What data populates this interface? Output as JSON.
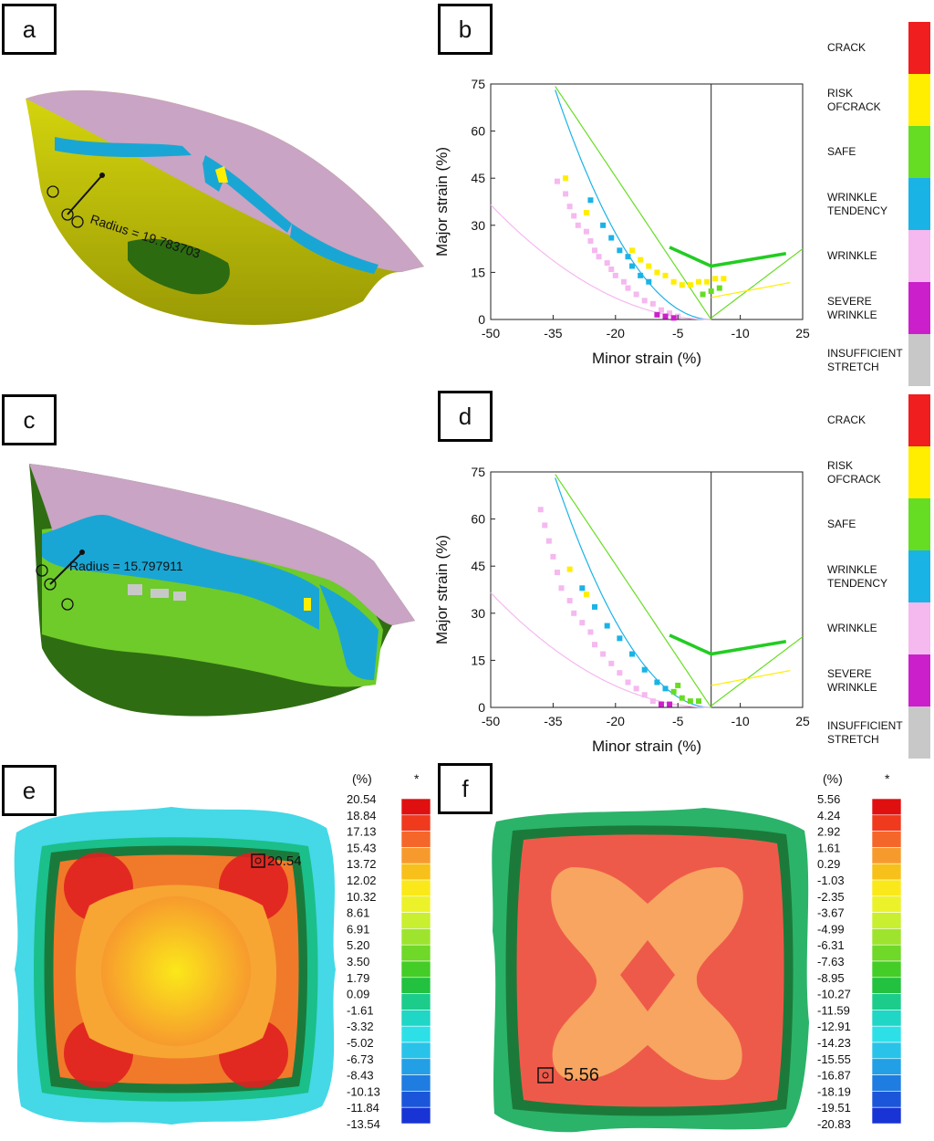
{
  "panels": {
    "a": "a",
    "b": "b",
    "c": "c",
    "d": "d",
    "e": "e",
    "f": "f"
  },
  "part_a": {
    "radius_label": "Radius = 19.783703"
  },
  "part_c": {
    "radius_label": "Radius = 15.797911"
  },
  "flc_legend": {
    "items": [
      {
        "id": "crack",
        "label": "CRACK",
        "color": "#f01e1e"
      },
      {
        "id": "risk",
        "label": "RISK\nOFCRACK",
        "color": "#ffee00"
      },
      {
        "id": "safe",
        "label": "SAFE",
        "color": "#66dd22"
      },
      {
        "id": "wrinkle-tendency",
        "label": "WRINKLE\nTENDENCY",
        "color": "#1ab3e6"
      },
      {
        "id": "wrinkle",
        "label": "WRINKLE",
        "color": "#f5b8ef"
      },
      {
        "id": "severe",
        "label": "SEVERE\nWRINKLE",
        "color": "#cc1fcc"
      },
      {
        "id": "insufficient",
        "label": "INSUFFICIENT\nSTRETCH",
        "color": "#c8c8c8"
      }
    ]
  },
  "contour_e": {
    "unit_label": "(%)",
    "marker_label": "*",
    "values": [
      "20.54",
      "18.84",
      "17.13",
      "15.43",
      "13.72",
      "12.02",
      "10.32",
      "8.61",
      "6.91",
      "5.20",
      "3.50",
      "1.79",
      "0.09",
      "-1.61",
      "-3.32",
      "-5.02",
      "-6.73",
      "-8.43",
      "-10.13",
      "-11.84",
      "-13.54"
    ],
    "max_callout": "20.54"
  },
  "contour_f": {
    "unit_label": "(%)",
    "marker_label": "*",
    "values": [
      "5.56",
      "4.24",
      "2.92",
      "1.61",
      "0.29",
      "-1.03",
      "-2.35",
      "-3.67",
      "-4.99",
      "-6.31",
      "-7.63",
      "-8.95",
      "-10.27",
      "-11.59",
      "-12.91",
      "-14.23",
      "-15.55",
      "-16.87",
      "-18.19",
      "-19.51",
      "-20.83"
    ],
    "max_callout": "5.56"
  },
  "contour_colors": [
    "#e01010",
    "#f03a1e",
    "#f5662a",
    "#f79a2e",
    "#f8c01a",
    "#fbe81a",
    "#ecf22a",
    "#c8ef30",
    "#9ee42e",
    "#6fd829",
    "#44cc27",
    "#22c13f",
    "#1bcc8a",
    "#20d6c4",
    "#2de0e8",
    "#29c3ea",
    "#239fe6",
    "#1f7ce0",
    "#1b56da",
    "#1834d4",
    "#1414c8"
  ],
  "chart_data": [
    {
      "id": "b",
      "type": "scatter",
      "title": "",
      "xlabel": "Minor strain (%)",
      "ylabel": "Major strain (%)",
      "xlim": [
        -50,
        25
      ],
      "ylim": [
        0,
        75
      ],
      "x_ticks": [
        "-50",
        "-35",
        "-20",
        "-5",
        "-10",
        "25"
      ],
      "y_ticks": [
        "75",
        "60",
        "45",
        "30",
        "15",
        "0"
      ],
      "series": [
        {
          "name": "Wrinkle",
          "color": "#f5b8ef",
          "points": [
            [
              -34,
              44
            ],
            [
              -32,
              40
            ],
            [
              -31,
              36
            ],
            [
              -30,
              33
            ],
            [
              -29,
              30
            ],
            [
              -27,
              28
            ],
            [
              -26,
              25
            ],
            [
              -25,
              22
            ],
            [
              -24,
              20
            ],
            [
              -22,
              18
            ],
            [
              -21,
              16
            ],
            [
              -20,
              14
            ],
            [
              -18,
              12
            ],
            [
              -17,
              10
            ],
            [
              -15,
              8
            ],
            [
              -13,
              6
            ],
            [
              -11,
              5
            ],
            [
              -9,
              3
            ],
            [
              -7,
              2
            ],
            [
              -5,
              1
            ]
          ]
        },
        {
          "name": "Severe wrinkle",
          "color": "#cc1fcc",
          "points": [
            [
              -10,
              1.5
            ],
            [
              -8,
              1
            ],
            [
              -6,
              0.5
            ]
          ]
        },
        {
          "name": "Wrinkle tendency",
          "color": "#1ab3e6",
          "points": [
            [
              -26,
              38
            ],
            [
              -23,
              30
            ],
            [
              -21,
              26
            ],
            [
              -19,
              22
            ],
            [
              -17,
              20
            ],
            [
              -16,
              17
            ],
            [
              -14,
              14
            ],
            [
              -12,
              12
            ]
          ]
        },
        {
          "name": "Risk of crack",
          "color": "#ffee00",
          "points": [
            [
              -32,
              45
            ],
            [
              -27,
              34
            ],
            [
              -16,
              22
            ],
            [
              -14,
              19
            ],
            [
              -12,
              17
            ],
            [
              -10,
              15
            ],
            [
              -8,
              14
            ],
            [
              -6,
              12
            ],
            [
              -4,
              11
            ],
            [
              -2,
              11
            ],
            [
              0,
              12
            ],
            [
              2,
              12
            ],
            [
              4,
              13
            ],
            [
              6,
              13
            ]
          ]
        },
        {
          "name": "Safe",
          "color": "#66dd22",
          "points": [
            [
              1,
              8
            ],
            [
              3,
              9
            ],
            [
              5,
              10
            ]
          ]
        }
      ]
    },
    {
      "id": "d",
      "type": "scatter",
      "title": "",
      "xlabel": "Minor strain (%)",
      "ylabel": "Major strain (%)",
      "xlim": [
        -50,
        25
      ],
      "ylim": [
        0,
        75
      ],
      "x_ticks": [
        "-50",
        "-35",
        "-20",
        "-5",
        "-10",
        "25"
      ],
      "y_ticks": [
        "75",
        "60",
        "45",
        "30",
        "15",
        "0"
      ],
      "series": [
        {
          "name": "Wrinkle",
          "color": "#f5b8ef",
          "points": [
            [
              -38,
              63
            ],
            [
              -37,
              58
            ],
            [
              -36,
              53
            ],
            [
              -35,
              48
            ],
            [
              -34,
              43
            ],
            [
              -33,
              38
            ],
            [
              -31,
              34
            ],
            [
              -30,
              30
            ],
            [
              -28,
              27
            ],
            [
              -26,
              24
            ],
            [
              -25,
              20
            ],
            [
              -23,
              17
            ],
            [
              -21,
              14
            ],
            [
              -19,
              11
            ],
            [
              -17,
              8
            ],
            [
              -15,
              6
            ],
            [
              -13,
              4
            ],
            [
              -11,
              2
            ]
          ]
        },
        {
          "name": "Severe wrinkle",
          "color": "#cc1fcc",
          "points": [
            [
              -9,
              1
            ],
            [
              -7,
              1
            ]
          ]
        },
        {
          "name": "Wrinkle tendency",
          "color": "#1ab3e6",
          "points": [
            [
              -28,
              38
            ],
            [
              -25,
              32
            ],
            [
              -22,
              26
            ],
            [
              -19,
              22
            ],
            [
              -16,
              17
            ],
            [
              -13,
              12
            ],
            [
              -10,
              8
            ],
            [
              -8,
              6
            ]
          ]
        },
        {
          "name": "Risk of crack",
          "color": "#ffee00",
          "points": [
            [
              -31,
              44
            ],
            [
              -27,
              36
            ]
          ]
        },
        {
          "name": "Safe",
          "color": "#66dd22",
          "points": [
            [
              -6,
              5
            ],
            [
              -4,
              3
            ],
            [
              -2,
              2
            ],
            [
              0,
              2
            ],
            [
              -5,
              7
            ]
          ]
        }
      ]
    }
  ]
}
